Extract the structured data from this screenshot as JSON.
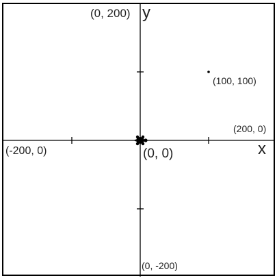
{
  "coordinate_plane": {
    "x_axis_label": "x",
    "y_axis_label": "y",
    "origin_label": "(0, 0)",
    "top_label": "(0, 200)",
    "bottom_label": "(0, -200)",
    "left_label": "(-200, 0)",
    "right_label": "(200, 0)",
    "point_label": "(100, 100)",
    "point": {
      "x": 100,
      "y": 100
    },
    "range": {
      "x": [
        -200,
        200
      ],
      "y": [
        -200,
        200
      ]
    },
    "tick_step": 100,
    "colors": {
      "axis": "#000000",
      "frame": "#000000",
      "text": "#222222",
      "background": "#ffffff"
    },
    "turtle_icon": "turtle-icon"
  }
}
